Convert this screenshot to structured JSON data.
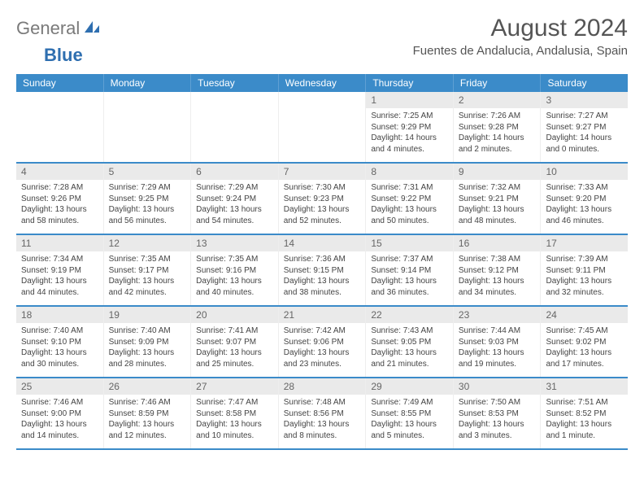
{
  "logo": {
    "text1": "General",
    "text2": "Blue"
  },
  "title": "August 2024",
  "location": "Fuentes de Andalucia, Andalusia, Spain",
  "colors": {
    "header_bg": "#3b8bc9",
    "header_text": "#ffffff",
    "row_border": "#3b8bc9",
    "daynum_bg": "#eaeaea",
    "logo_gray": "#7a7a7a",
    "logo_blue": "#2f6fb0"
  },
  "day_names": [
    "Sunday",
    "Monday",
    "Tuesday",
    "Wednesday",
    "Thursday",
    "Friday",
    "Saturday"
  ],
  "weeks": [
    [
      null,
      null,
      null,
      null,
      {
        "n": "1",
        "sr": "7:25 AM",
        "ss": "9:29 PM",
        "dl": "14 hours and 4 minutes."
      },
      {
        "n": "2",
        "sr": "7:26 AM",
        "ss": "9:28 PM",
        "dl": "14 hours and 2 minutes."
      },
      {
        "n": "3",
        "sr": "7:27 AM",
        "ss": "9:27 PM",
        "dl": "14 hours and 0 minutes."
      }
    ],
    [
      {
        "n": "4",
        "sr": "7:28 AM",
        "ss": "9:26 PM",
        "dl": "13 hours and 58 minutes."
      },
      {
        "n": "5",
        "sr": "7:29 AM",
        "ss": "9:25 PM",
        "dl": "13 hours and 56 minutes."
      },
      {
        "n": "6",
        "sr": "7:29 AM",
        "ss": "9:24 PM",
        "dl": "13 hours and 54 minutes."
      },
      {
        "n": "7",
        "sr": "7:30 AM",
        "ss": "9:23 PM",
        "dl": "13 hours and 52 minutes."
      },
      {
        "n": "8",
        "sr": "7:31 AM",
        "ss": "9:22 PM",
        "dl": "13 hours and 50 minutes."
      },
      {
        "n": "9",
        "sr": "7:32 AM",
        "ss": "9:21 PM",
        "dl": "13 hours and 48 minutes."
      },
      {
        "n": "10",
        "sr": "7:33 AM",
        "ss": "9:20 PM",
        "dl": "13 hours and 46 minutes."
      }
    ],
    [
      {
        "n": "11",
        "sr": "7:34 AM",
        "ss": "9:19 PM",
        "dl": "13 hours and 44 minutes."
      },
      {
        "n": "12",
        "sr": "7:35 AM",
        "ss": "9:17 PM",
        "dl": "13 hours and 42 minutes."
      },
      {
        "n": "13",
        "sr": "7:35 AM",
        "ss": "9:16 PM",
        "dl": "13 hours and 40 minutes."
      },
      {
        "n": "14",
        "sr": "7:36 AM",
        "ss": "9:15 PM",
        "dl": "13 hours and 38 minutes."
      },
      {
        "n": "15",
        "sr": "7:37 AM",
        "ss": "9:14 PM",
        "dl": "13 hours and 36 minutes."
      },
      {
        "n": "16",
        "sr": "7:38 AM",
        "ss": "9:12 PM",
        "dl": "13 hours and 34 minutes."
      },
      {
        "n": "17",
        "sr": "7:39 AM",
        "ss": "9:11 PM",
        "dl": "13 hours and 32 minutes."
      }
    ],
    [
      {
        "n": "18",
        "sr": "7:40 AM",
        "ss": "9:10 PM",
        "dl": "13 hours and 30 minutes."
      },
      {
        "n": "19",
        "sr": "7:40 AM",
        "ss": "9:09 PM",
        "dl": "13 hours and 28 minutes."
      },
      {
        "n": "20",
        "sr": "7:41 AM",
        "ss": "9:07 PM",
        "dl": "13 hours and 25 minutes."
      },
      {
        "n": "21",
        "sr": "7:42 AM",
        "ss": "9:06 PM",
        "dl": "13 hours and 23 minutes."
      },
      {
        "n": "22",
        "sr": "7:43 AM",
        "ss": "9:05 PM",
        "dl": "13 hours and 21 minutes."
      },
      {
        "n": "23",
        "sr": "7:44 AM",
        "ss": "9:03 PM",
        "dl": "13 hours and 19 minutes."
      },
      {
        "n": "24",
        "sr": "7:45 AM",
        "ss": "9:02 PM",
        "dl": "13 hours and 17 minutes."
      }
    ],
    [
      {
        "n": "25",
        "sr": "7:46 AM",
        "ss": "9:00 PM",
        "dl": "13 hours and 14 minutes."
      },
      {
        "n": "26",
        "sr": "7:46 AM",
        "ss": "8:59 PM",
        "dl": "13 hours and 12 minutes."
      },
      {
        "n": "27",
        "sr": "7:47 AM",
        "ss": "8:58 PM",
        "dl": "13 hours and 10 minutes."
      },
      {
        "n": "28",
        "sr": "7:48 AM",
        "ss": "8:56 PM",
        "dl": "13 hours and 8 minutes."
      },
      {
        "n": "29",
        "sr": "7:49 AM",
        "ss": "8:55 PM",
        "dl": "13 hours and 5 minutes."
      },
      {
        "n": "30",
        "sr": "7:50 AM",
        "ss": "8:53 PM",
        "dl": "13 hours and 3 minutes."
      },
      {
        "n": "31",
        "sr": "7:51 AM",
        "ss": "8:52 PM",
        "dl": "13 hours and 1 minute."
      }
    ]
  ],
  "labels": {
    "sunrise": "Sunrise: ",
    "sunset": "Sunset: ",
    "daylight": "Daylight: "
  }
}
